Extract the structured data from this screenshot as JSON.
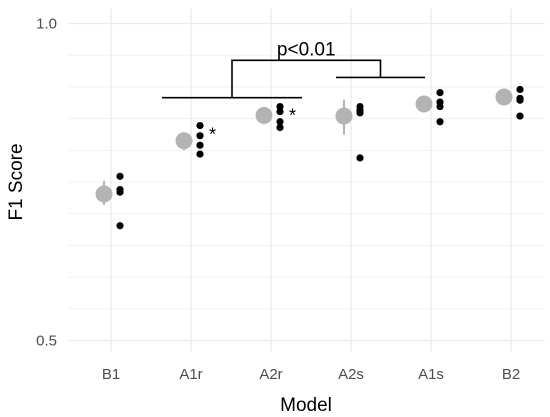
{
  "chart_data": {
    "type": "scatter",
    "xlabel": "Model",
    "ylabel": "F1 Score",
    "ylim": [
      0.5,
      1.0
    ],
    "yticks": [
      0.5,
      1.0
    ],
    "ytick_labels": [
      "0.5",
      "1.0"
    ],
    "grid": true,
    "categories": [
      "B1",
      "A1r",
      "A2r",
      "A2s",
      "A1s",
      "B2"
    ],
    "means": [
      0.731,
      0.815,
      0.855,
      0.854,
      0.873,
      0.884
    ],
    "error_bars": [
      [
        0.714,
        0.752
      ],
      [
        0.8,
        0.828
      ],
      [
        0.841,
        0.868
      ],
      [
        0.825,
        0.88
      ],
      [
        0.86,
        0.885
      ],
      [
        0.873,
        0.895
      ]
    ],
    "points": [
      [
        0.759,
        0.738,
        0.734,
        0.681
      ],
      [
        0.839,
        0.823,
        0.808,
        0.794
      ],
      [
        0.869,
        0.861,
        0.845,
        0.836
      ],
      [
        0.869,
        0.863,
        0.859,
        0.788
      ],
      [
        0.891,
        0.876,
        0.869,
        0.845
      ],
      [
        0.896,
        0.882,
        0.879,
        0.854
      ]
    ],
    "significance": {
      "stars": [
        {
          "category": "A1r",
          "label": "*"
        },
        {
          "category": "A2r",
          "label": "*"
        }
      ],
      "bracket": {
        "label": "p<0.01",
        "left_group": [
          "A1r",
          "A2r"
        ],
        "right_group": [
          "A2s",
          "A1s"
        ],
        "left_y": 0.883,
        "right_y": 0.915,
        "top_y": 0.942
      }
    },
    "colors": {
      "mean_marker": "#b3b3b3",
      "points": "#000000",
      "grid": "#ebebeb"
    }
  }
}
